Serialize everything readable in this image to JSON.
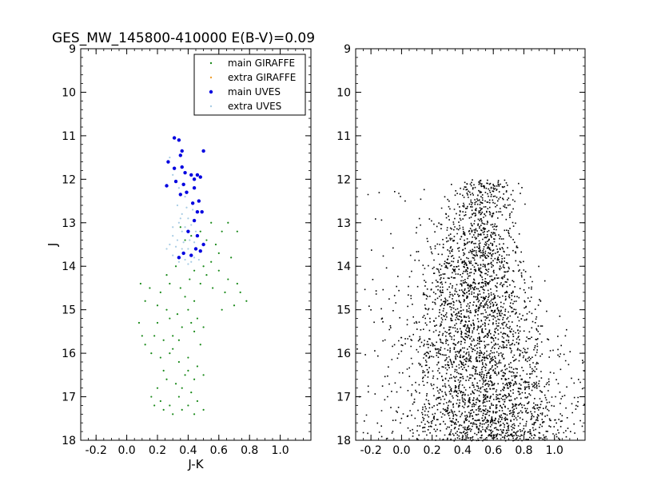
{
  "chart_data": [
    {
      "type": "scatter",
      "title": "GES_MW_145800-410000 E(B-V)=0.09",
      "xlabel": "J-K",
      "ylabel": "J",
      "xlim": [
        -0.3,
        1.2
      ],
      "ylim": [
        18,
        9
      ],
      "y_inverted": true,
      "xticks": [
        "-0.2",
        "0.0",
        "0.2",
        "0.4",
        "0.6",
        "0.8",
        "1.0"
      ],
      "yticks": [
        "9",
        "10",
        "11",
        "12",
        "13",
        "14",
        "15",
        "16",
        "17",
        "18"
      ],
      "grid": false,
      "legend_position": "top-right",
      "series": [
        {
          "name": "main GIRAFFE",
          "color": "#1a8a1a",
          "marker": "small-dot",
          "points": [
            [
              0.35,
              13.1
            ],
            [
              0.42,
              13.3
            ],
            [
              0.48,
              13.2
            ],
            [
              0.55,
              13.0
            ],
            [
              0.62,
              13.2
            ],
            [
              0.58,
              13.5
            ],
            [
              0.66,
              13.0
            ],
            [
              0.72,
              13.2
            ],
            [
              0.38,
              13.4
            ],
            [
              0.45,
              13.6
            ],
            [
              0.52,
              13.4
            ],
            [
              0.6,
              13.7
            ],
            [
              0.55,
              13.9
            ],
            [
              0.68,
              13.8
            ],
            [
              0.5,
              14.0
            ],
            [
              0.44,
              14.1
            ],
            [
              0.52,
              14.2
            ],
            [
              0.6,
              14.1
            ],
            [
              0.66,
              14.3
            ],
            [
              0.72,
              14.4
            ],
            [
              0.74,
              14.6
            ],
            [
              0.78,
              14.8
            ],
            [
              0.7,
              14.9
            ],
            [
              0.62,
              15.0
            ],
            [
              0.64,
              14.6
            ],
            [
              0.56,
              14.5
            ],
            [
              0.48,
              14.4
            ],
            [
              0.41,
              14.3
            ],
            [
              0.35,
              14.5
            ],
            [
              0.28,
              14.4
            ],
            [
              0.22,
              14.6
            ],
            [
              0.15,
              14.5
            ],
            [
              0.09,
              14.4
            ],
            [
              0.12,
              14.8
            ],
            [
              0.2,
              14.9
            ],
            [
              0.26,
              15.0
            ],
            [
              0.33,
              15.1
            ],
            [
              0.4,
              15.0
            ],
            [
              0.46,
              15.2
            ],
            [
              0.5,
              15.4
            ],
            [
              0.44,
              15.5
            ],
            [
              0.36,
              15.4
            ],
            [
              0.3,
              15.6
            ],
            [
              0.24,
              15.7
            ],
            [
              0.18,
              15.6
            ],
            [
              0.12,
              15.8
            ],
            [
              0.08,
              15.3
            ],
            [
              0.1,
              15.6
            ],
            [
              0.16,
              16.0
            ],
            [
              0.22,
              16.1
            ],
            [
              0.28,
              16.0
            ],
            [
              0.34,
              16.2
            ],
            [
              0.4,
              16.1
            ],
            [
              0.46,
              16.3
            ],
            [
              0.5,
              16.5
            ],
            [
              0.44,
              16.6
            ],
            [
              0.38,
              16.5
            ],
            [
              0.32,
              16.7
            ],
            [
              0.26,
              16.6
            ],
            [
              0.2,
              16.8
            ],
            [
              0.16,
              17.0
            ],
            [
              0.22,
              17.1
            ],
            [
              0.28,
              17.2
            ],
            [
              0.34,
              17.0
            ],
            [
              0.4,
              17.2
            ],
            [
              0.46,
              17.1
            ],
            [
              0.5,
              17.3
            ],
            [
              0.44,
              17.4
            ],
            [
              0.36,
              17.3
            ],
            [
              0.3,
              17.4
            ],
            [
              0.24,
              17.3
            ],
            [
              0.18,
              17.2
            ],
            [
              0.26,
              14.2
            ],
            [
              0.32,
              14.0
            ],
            [
              0.38,
              14.7
            ],
            [
              0.42,
              15.3
            ],
            [
              0.3,
              15.9
            ],
            [
              0.36,
              16.8
            ],
            [
              0.42,
              16.9
            ],
            [
              0.48,
              15.8
            ],
            [
              0.44,
              14.8
            ],
            [
              0.28,
              15.2
            ],
            [
              0.34,
              15.7
            ],
            [
              0.4,
              16.4
            ],
            [
              0.24,
              16.4
            ],
            [
              0.2,
              15.3
            ]
          ]
        },
        {
          "name": "extra GIRAFFE",
          "color": "#f0a030",
          "marker": "small-dot",
          "points": []
        },
        {
          "name": "main UVES",
          "color": "#0000e0",
          "marker": "dot",
          "points": [
            [
              0.31,
              11.05
            ],
            [
              0.34,
              11.1
            ],
            [
              0.36,
              11.35
            ],
            [
              0.35,
              11.45
            ],
            [
              0.5,
              11.35
            ],
            [
              0.27,
              11.6
            ],
            [
              0.36,
              11.72
            ],
            [
              0.31,
              11.75
            ],
            [
              0.38,
              11.85
            ],
            [
              0.42,
              11.9
            ],
            [
              0.46,
              11.9
            ],
            [
              0.48,
              11.95
            ],
            [
              0.44,
              12.0
            ],
            [
              0.26,
              12.15
            ],
            [
              0.32,
              12.05
            ],
            [
              0.37,
              12.12
            ],
            [
              0.39,
              12.3
            ],
            [
              0.35,
              12.35
            ],
            [
              0.44,
              12.2
            ],
            [
              0.47,
              12.5
            ],
            [
              0.43,
              12.55
            ],
            [
              0.46,
              12.75
            ],
            [
              0.49,
              12.75
            ],
            [
              0.44,
              12.95
            ],
            [
              0.4,
              13.2
            ],
            [
              0.46,
              13.3
            ],
            [
              0.5,
              13.5
            ],
            [
              0.45,
              13.6
            ],
            [
              0.37,
              13.7
            ],
            [
              0.42,
              13.75
            ],
            [
              0.34,
              13.8
            ],
            [
              0.48,
              13.65
            ]
          ]
        },
        {
          "name": "extra UVES",
          "color": "#a8cce4",
          "marker": "small-dot",
          "points": [
            [
              0.28,
              11.5
            ],
            [
              0.3,
              11.9
            ],
            [
              0.34,
              12.2
            ],
            [
              0.38,
              12.4
            ],
            [
              0.33,
              12.6
            ],
            [
              0.36,
              12.8
            ],
            [
              0.4,
              12.9
            ],
            [
              0.34,
              13.0
            ],
            [
              0.38,
              13.1
            ],
            [
              0.42,
              13.05
            ],
            [
              0.36,
              13.2
            ],
            [
              0.3,
              13.3
            ],
            [
              0.33,
              13.4
            ],
            [
              0.37,
              13.45
            ],
            [
              0.41,
              13.4
            ],
            [
              0.44,
              13.45
            ],
            [
              0.28,
              13.5
            ],
            [
              0.32,
              13.55
            ],
            [
              0.36,
              13.6
            ],
            [
              0.4,
              13.6
            ],
            [
              0.44,
              13.8
            ],
            [
              0.38,
              13.85
            ],
            [
              0.34,
              13.9
            ],
            [
              0.4,
              13.95
            ],
            [
              0.3,
              13.75
            ],
            [
              0.26,
              13.6
            ],
            [
              0.45,
              13.2
            ],
            [
              0.43,
              12.7
            ],
            [
              0.39,
              12.65
            ],
            [
              0.35,
              12.9
            ],
            [
              0.3,
              13.1
            ],
            [
              0.42,
              13.9
            ],
            [
              0.47,
              13.85
            ]
          ]
        }
      ]
    },
    {
      "type": "scatter",
      "title": "",
      "xlabel": "",
      "ylabel": "",
      "xlim": [
        -0.3,
        1.2
      ],
      "ylim": [
        18,
        9
      ],
      "y_inverted": true,
      "xticks": [
        "-0.2",
        "0.0",
        "0.2",
        "0.4",
        "0.6",
        "0.8",
        "1.0"
      ],
      "yticks": [
        "9",
        "10",
        "11",
        "12",
        "13",
        "14",
        "15",
        "16",
        "17",
        "18"
      ],
      "grid": false,
      "series": [
        {
          "color": "#000000",
          "marker": "pixel",
          "density_model": {
            "count": 26000,
            "j_range": [
              12.0,
              18.0
            ],
            "cut_bright_j": 12.0,
            "ridge": [
              [
                12.0,
                0.55
              ],
              [
                13.0,
                0.5
              ],
              [
                14.0,
                0.47
              ],
              [
                15.0,
                0.47
              ],
              [
                16.0,
                0.49
              ],
              [
                17.0,
                0.53
              ],
              [
                18.0,
                0.6
              ]
            ],
            "spread": [
              [
                12.0,
                0.1
              ],
              [
                13.0,
                0.13
              ],
              [
                14.0,
                0.17
              ],
              [
                15.0,
                0.2
              ],
              [
                16.0,
                0.24
              ],
              [
                17.0,
                0.27
              ],
              [
                18.0,
                0.3
              ]
            ],
            "weight": [
              [
                12.0,
                0.6
              ],
              [
                13.0,
                1.0
              ],
              [
                14.0,
                1.3
              ],
              [
                15.0,
                1.6
              ],
              [
                16.0,
                1.9
              ],
              [
                17.0,
                2.2
              ],
              [
                18.0,
                2.5
              ]
            ],
            "x_clip": [
              -0.3,
              1.2
            ]
          }
        }
      ]
    }
  ]
}
